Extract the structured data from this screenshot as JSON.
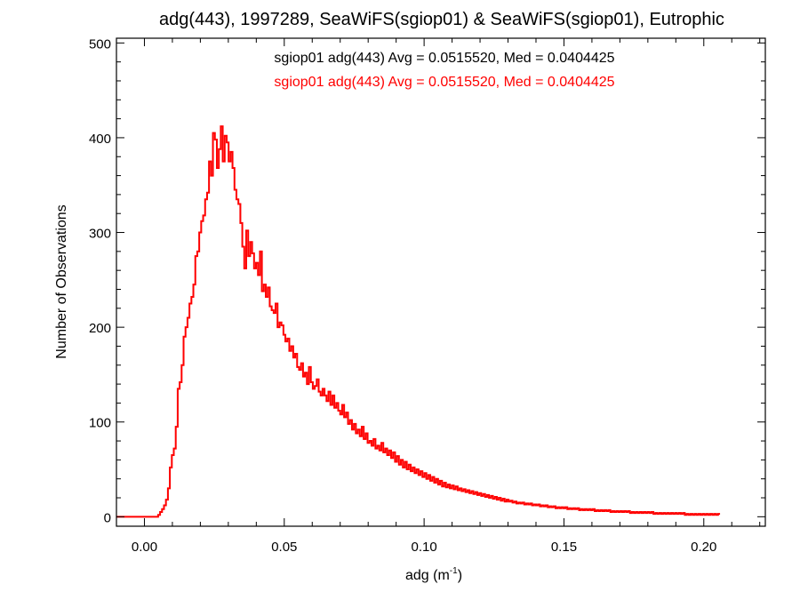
{
  "chart_data": {
    "type": "histogram",
    "title": "adg(443), 1997289, SeaWiFS(sgiop01) & SeaWiFS(sgiop01), Eutrophic",
    "xlabel": "adg (m",
    "xlabel_sup": "-1",
    "xlabel_close": ")",
    "ylabel": "Number of Observations",
    "xlim": [
      -0.01,
      0.222
    ],
    "ylim": [
      -10,
      505
    ],
    "xticks": [
      {
        "value": 0.0,
        "label": "0.00"
      },
      {
        "value": 0.05,
        "label": "0.05"
      },
      {
        "value": 0.1,
        "label": "0.10"
      },
      {
        "value": 0.15,
        "label": "0.15"
      },
      {
        "value": 0.2,
        "label": "0.20"
      }
    ],
    "yticks": [
      {
        "value": 0,
        "label": "0"
      },
      {
        "value": 100,
        "label": "100"
      },
      {
        "value": 200,
        "label": "200"
      },
      {
        "value": 300,
        "label": "300"
      },
      {
        "value": 400,
        "label": "400"
      },
      {
        "value": 500,
        "label": "500"
      }
    ],
    "legend": [
      {
        "text": "sgiop01 adg(443) Avg = 0.0515520, Med = 0.0404425",
        "color": "#000000"
      },
      {
        "text": "sgiop01 adg(443) Avg = 0.0515520, Med = 0.0404425",
        "color": "#ff0000"
      }
    ],
    "series": [
      {
        "color": "#000000"
      },
      {
        "color": "#ff0000"
      }
    ],
    "bin_start": -0.0098,
    "bin_width": 0.0007,
    "counts": [
      0,
      0,
      0,
      0,
      0,
      0,
      0,
      0,
      0,
      0,
      0,
      0,
      0,
      0,
      0,
      0,
      0,
      0,
      0,
      0,
      0,
      2,
      5,
      8,
      12,
      18,
      30,
      52,
      65,
      72,
      95,
      135,
      142,
      160,
      190,
      200,
      210,
      225,
      232,
      245,
      275,
      280,
      300,
      312,
      318,
      335,
      342,
      375,
      360,
      405,
      398,
      368,
      388,
      412,
      375,
      402,
      395,
      375,
      385,
      368,
      345,
      335,
      330,
      310,
      285,
      262,
      302,
      275,
      290,
      278,
      262,
      268,
      255,
      280,
      238,
      245,
      232,
      242,
      222,
      218,
      215,
      225,
      200,
      205,
      202,
      192,
      185,
      188,
      175,
      180,
      168,
      172,
      158,
      155,
      162,
      148,
      152,
      140,
      158,
      142,
      135,
      138,
      145,
      132,
      128,
      135,
      128,
      122,
      132,
      118,
      128,
      115,
      120,
      112,
      108,
      118,
      105,
      110,
      98,
      102,
      92,
      98,
      88,
      92,
      85,
      95,
      82,
      88,
      78,
      80,
      75,
      82,
      72,
      75,
      70,
      78,
      68,
      72,
      65,
      70,
      62,
      68,
      58,
      64,
      55,
      60,
      52,
      58,
      50,
      55,
      48,
      52,
      46,
      50,
      44,
      48,
      42,
      46,
      40,
      44,
      38,
      42,
      36,
      40,
      34,
      38,
      32,
      36,
      31,
      34,
      30,
      33,
      29,
      32,
      28,
      30,
      27,
      29,
      26,
      28,
      25,
      27,
      24,
      26,
      23,
      25,
      22,
      24,
      21,
      23,
      20,
      22,
      19,
      21,
      18,
      20,
      17,
      19,
      16,
      18,
      16,
      17,
      15,
      16,
      14,
      15,
      14,
      15,
      13,
      14,
      13,
      14,
      12,
      13,
      12,
      13,
      11,
      12,
      11,
      12,
      10,
      11,
      10,
      11,
      9,
      10,
      9,
      10,
      9,
      10,
      8,
      9,
      8,
      9,
      8,
      9,
      7,
      8,
      7,
      8,
      7,
      8,
      7,
      8,
      6,
      7,
      6,
      7,
      6,
      7,
      6,
      7,
      5,
      6,
      5,
      6,
      5,
      6,
      5,
      6,
      5,
      6,
      4,
      5,
      4,
      5,
      4,
      5,
      4,
      5,
      4,
      5,
      4,
      5,
      3,
      4,
      3,
      4,
      3,
      4,
      3,
      4,
      3,
      4,
      3,
      4,
      3,
      4,
      3,
      4,
      2,
      3,
      2,
      3,
      2,
      3,
      2,
      3,
      2,
      3,
      2,
      3,
      2,
      3,
      2,
      3,
      2,
      3
    ]
  }
}
